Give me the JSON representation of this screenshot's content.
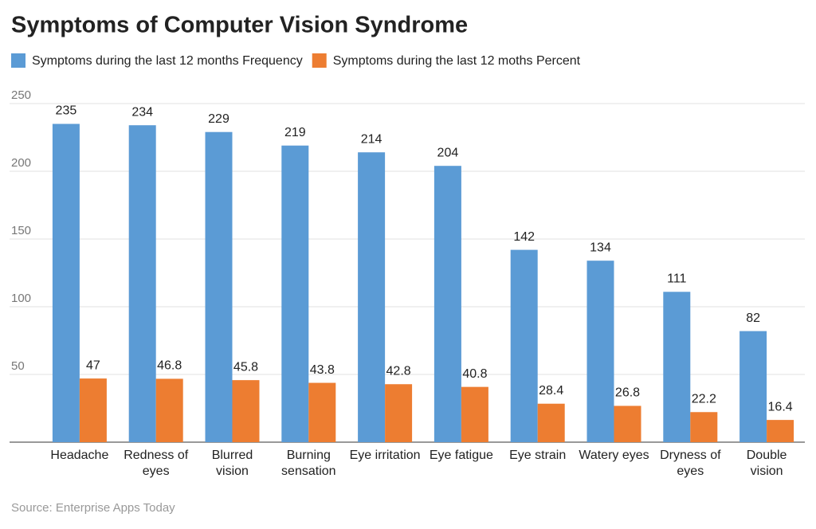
{
  "chart_data": {
    "type": "bar",
    "title": "Symptoms of Computer Vision Syndrome",
    "source": "Source: Enterprise Apps Today",
    "categories": [
      "Headache",
      "Redness of eyes",
      "Blurred vision",
      "Burning sensation",
      "Eye irritation",
      "Eye fatigue",
      "Eye strain",
      "Watery eyes",
      "Dryness of eyes",
      "Double vision"
    ],
    "series": [
      {
        "name": "Symptoms during the last 12 months Frequency",
        "color": "#5b9bd5",
        "values": [
          235,
          234,
          229,
          219,
          214,
          204,
          142,
          134,
          111,
          82
        ]
      },
      {
        "name": "Symptoms during the last 12 moths Percent",
        "color": "#ed7d31",
        "values": [
          47,
          46.8,
          45.8,
          43.8,
          42.8,
          40.8,
          28.4,
          26.8,
          22.2,
          16.4
        ]
      }
    ],
    "ylim": [
      0,
      250
    ],
    "yticks": [
      50,
      100,
      150,
      200,
      250
    ],
    "grid": true
  }
}
